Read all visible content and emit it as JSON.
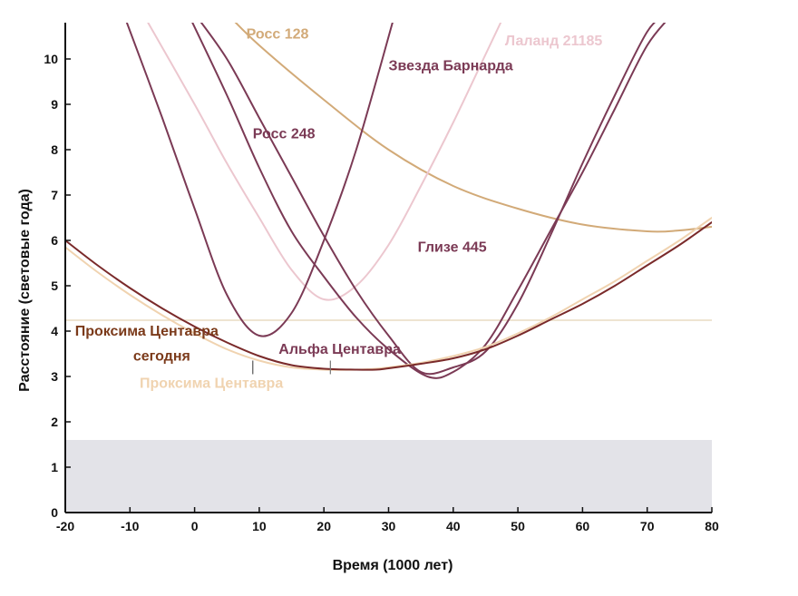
{
  "chart_data": {
    "type": "line",
    "title": "",
    "xlabel": "Время (1000 лет)",
    "ylabel": "Расстояние (световые года)",
    "xlim": [
      -20,
      80
    ],
    "ylim": [
      0,
      10.8
    ],
    "xticks": [
      -20,
      -10,
      0,
      10,
      20,
      30,
      40,
      50,
      60,
      70,
      80
    ],
    "xtick_labels": [
      "-20",
      "-10",
      "0",
      "10",
      "20",
      "30",
      "40",
      "50",
      "60",
      "70",
      "80"
    ],
    "yticks": [
      0,
      1,
      2,
      3,
      4,
      5,
      6,
      7,
      8,
      9,
      10
    ],
    "ytick_labels": [
      "0",
      "1",
      "2",
      "3",
      "4",
      "5",
      "6",
      "7",
      "8",
      "9",
      "10"
    ],
    "shaded_region": {
      "y_from": 0,
      "y_to": 1.6,
      "color": "#e3e3e8"
    },
    "reference_line": {
      "y": 4.24,
      "color": "#e9dcc2"
    },
    "grid": false,
    "legend": "none",
    "series": [
      {
        "name": "Росс 128",
        "color": "#d2aa78",
        "x": [
          5,
          10,
          20,
          30,
          40,
          50,
          60,
          70,
          75,
          80
        ],
        "y": [
          11.0,
          10.3,
          9.1,
          8.0,
          7.2,
          6.7,
          6.35,
          6.2,
          6.22,
          6.3
        ]
      },
      {
        "name": "Лаланд 21185",
        "color": "#ecc7cf",
        "x": [
          -8,
          0,
          5,
          10,
          15,
          20,
          25,
          30,
          35,
          40,
          45,
          48
        ],
        "y": [
          11.0,
          9.0,
          7.7,
          6.5,
          5.35,
          4.7,
          5.0,
          5.9,
          7.2,
          8.6,
          10.1,
          11.0
        ]
      },
      {
        "name": "Звезда Барнарда",
        "color": "#7b3a55",
        "x": [
          -1,
          5,
          10,
          15,
          20,
          25,
          30,
          36,
          40,
          45,
          50,
          55,
          60,
          65,
          70,
          74
        ],
        "y": [
          11.0,
          9.2,
          7.6,
          6.2,
          5.2,
          4.3,
          3.6,
          3.0,
          3.1,
          3.7,
          4.9,
          6.2,
          7.5,
          8.9,
          10.3,
          11.0
        ]
      },
      {
        "name": "Росс 248",
        "color": "#7b3a55",
        "x": [
          -11,
          -5,
          0,
          5,
          10,
          15,
          20,
          25,
          31
        ],
        "y": [
          11.0,
          8.7,
          6.7,
          4.8,
          3.9,
          4.4,
          6.0,
          8.0,
          11.0
        ]
      },
      {
        "name": "Глизе 445",
        "color": "#7b3a55",
        "x": [
          0,
          5,
          10,
          15,
          20,
          25,
          30,
          35,
          40,
          45,
          50,
          55,
          60,
          65,
          70,
          73
        ],
        "y": [
          11.0,
          10.0,
          8.7,
          7.4,
          6.1,
          4.9,
          3.9,
          3.1,
          3.2,
          3.55,
          4.6,
          6.1,
          7.7,
          9.2,
          10.6,
          11.0
        ]
      },
      {
        "name": "Проксима Центавра",
        "color": "#f0d3b0",
        "x": [
          -20,
          -15,
          -10,
          -5,
          0,
          5,
          10,
          15,
          20,
          25,
          28,
          30,
          35,
          40,
          45,
          50,
          55,
          60,
          65,
          70,
          75,
          80
        ],
        "y": [
          5.85,
          5.3,
          4.8,
          4.35,
          3.95,
          3.6,
          3.35,
          3.2,
          3.15,
          3.15,
          3.17,
          3.2,
          3.3,
          3.45,
          3.65,
          3.95,
          4.3,
          4.7,
          5.1,
          5.55,
          6.0,
          6.5
        ]
      },
      {
        "name": "Альфа Центавра",
        "color": "#7a2a2a",
        "x": [
          -20,
          -15,
          -10,
          -5,
          0,
          5,
          10,
          15,
          20,
          25,
          28,
          30,
          35,
          40,
          45,
          50,
          55,
          60,
          65,
          70,
          75,
          80
        ],
        "y": [
          6.0,
          5.45,
          4.95,
          4.5,
          4.1,
          3.75,
          3.45,
          3.25,
          3.17,
          3.15,
          3.15,
          3.18,
          3.28,
          3.4,
          3.6,
          3.9,
          4.25,
          4.6,
          5.0,
          5.45,
          5.9,
          6.4
        ]
      }
    ],
    "annotations": [
      {
        "text": "Росс 128",
        "color": "#d2aa78",
        "x": 8,
        "y": 10.45
      },
      {
        "text": "Лаланд 21185",
        "color": "#ecc7cf",
        "x": 48,
        "y": 10.3
      },
      {
        "text": "Звезда Барнарда",
        "color": "#7b3a55",
        "x": 30,
        "y": 9.75
      },
      {
        "text": "Росс 248",
        "color": "#7b3a55",
        "x": 9,
        "y": 8.25
      },
      {
        "text": "Глизе 445",
        "color": "#7b3a55",
        "x": 34.5,
        "y": 5.75
      },
      {
        "text": "Проксима Центавра",
        "color": "#7b3a1a",
        "x": -18.5,
        "y": 3.9
      },
      {
        "text": "сегодня",
        "color": "#7b3a1a",
        "x": -9.5,
        "y": 3.35
      },
      {
        "text": "Альфа Центавра",
        "color": "#7b3a55",
        "x": 13,
        "y": 3.5
      },
      {
        "text": "Проксима Центавра",
        "color": "#f0d3b0",
        "x": -8.5,
        "y": 2.75
      }
    ],
    "markers": [
      {
        "x": 9,
        "y_from": 3.05,
        "y_to": 3.35,
        "color": "#555555"
      },
      {
        "x": 21,
        "y_from": 3.05,
        "y_to": 3.35,
        "color": "#777777"
      }
    ]
  }
}
